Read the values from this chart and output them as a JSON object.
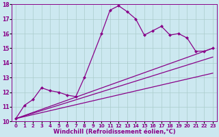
{
  "background_color": "#cce8f0",
  "grid_color": "#aacccc",
  "line_color": "#880088",
  "marker": "D",
  "markersize": 2.5,
  "linewidth": 0.9,
  "xlim": [
    -0.5,
    23.5
  ],
  "ylim": [
    10,
    18
  ],
  "xlabel": "Windchill (Refroidissement éolien,°C)",
  "xlabel_fontsize": 6.0,
  "xtick_fontsize": 5.0,
  "ytick_fontsize": 5.5,
  "main_line_x": [
    0,
    1,
    2,
    3,
    4,
    5,
    6,
    7,
    8,
    10,
    11,
    12,
    13,
    14,
    15,
    16,
    17,
    18,
    19,
    20,
    21,
    22,
    23
  ],
  "main_line_y": [
    10.2,
    11.1,
    11.5,
    12.3,
    12.1,
    12.0,
    11.8,
    11.7,
    13.0,
    16.0,
    17.6,
    17.9,
    17.5,
    17.0,
    15.9,
    16.2,
    16.5,
    15.9,
    16.0,
    15.7,
    14.8,
    14.8,
    15.0
  ],
  "straight_lines": [
    {
      "x": [
        0,
        23
      ],
      "y": [
        10.2,
        13.3
      ]
    },
    {
      "x": [
        0,
        23
      ],
      "y": [
        10.2,
        14.4
      ]
    },
    {
      "x": [
        0,
        23
      ],
      "y": [
        10.2,
        15.0
      ]
    }
  ]
}
